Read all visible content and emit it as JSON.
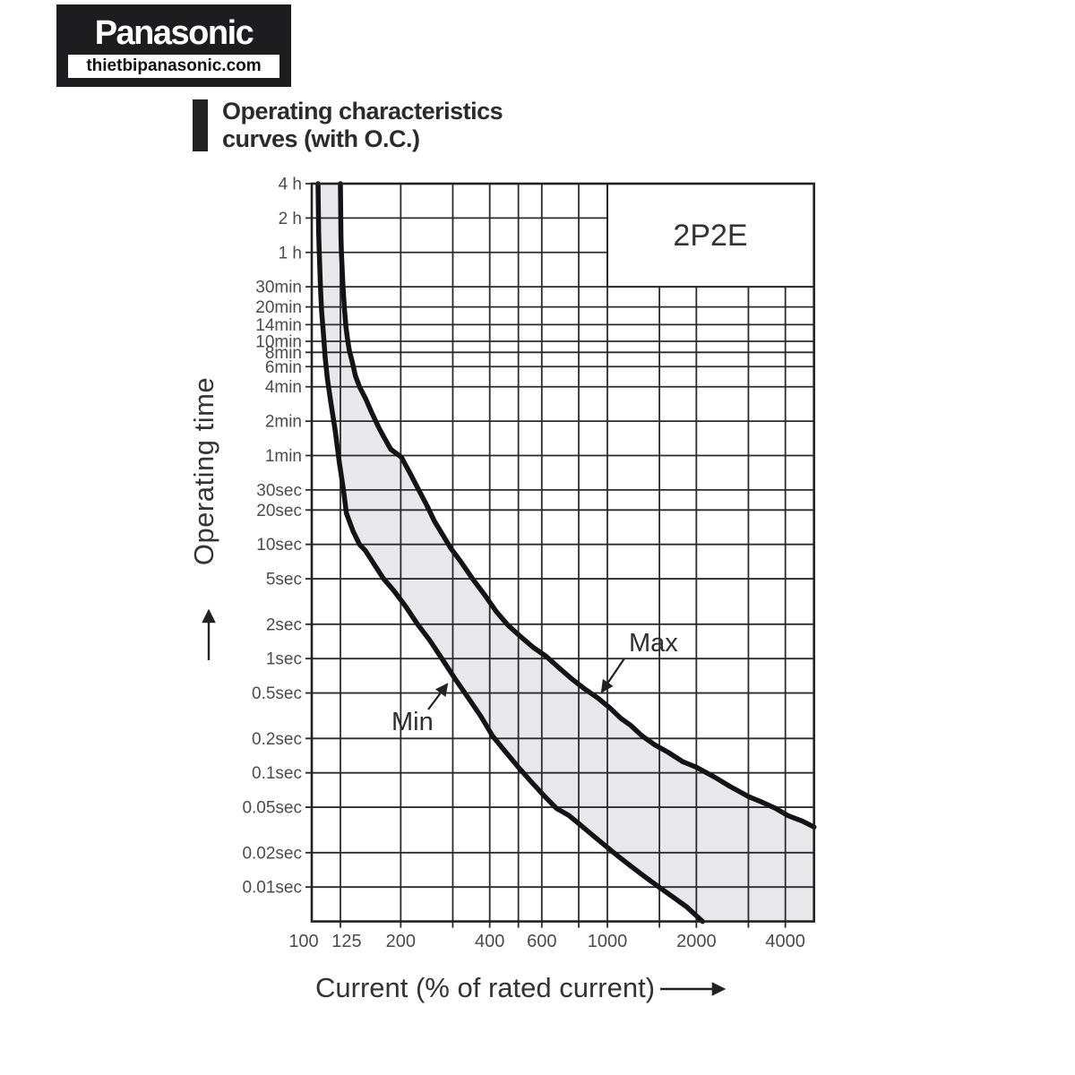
{
  "logo": {
    "brand": "Panasonic",
    "website": "thietbipanasonic.com"
  },
  "header": {
    "title_line1": "Operating characteristics",
    "title_line2": "curves (with O.C.)"
  },
  "chart_data": {
    "type": "line",
    "model_label": "2P2E",
    "x_axis": {
      "label": "Current (% of rated current)",
      "scale": "log",
      "range_pct": [
        100,
        5000
      ],
      "tick_values": [
        100,
        125,
        200,
        400,
        600,
        1000,
        2000,
        4000
      ],
      "tick_labels": [
        "100",
        "125",
        "200",
        "400",
        "600",
        "1000",
        "2000",
        "4000"
      ],
      "gridline_values": [
        125,
        200,
        300,
        400,
        500,
        600,
        800,
        1000,
        1500,
        2000,
        3000,
        4000
      ]
    },
    "y_axis": {
      "label": "Operating time",
      "scale": "log",
      "range_seconds": [
        0.005,
        14400
      ],
      "ticks": [
        {
          "label": "4 h",
          "seconds": 14400
        },
        {
          "label": "2 h",
          "seconds": 7200
        },
        {
          "label": "1 h",
          "seconds": 3600
        },
        {
          "label": "30min",
          "seconds": 1800
        },
        {
          "label": "20min",
          "seconds": 1200
        },
        {
          "label": "14min",
          "seconds": 840
        },
        {
          "label": "10min",
          "seconds": 600
        },
        {
          "label": "8min",
          "seconds": 480
        },
        {
          "label": "6min",
          "seconds": 360
        },
        {
          "label": "4min",
          "seconds": 240
        },
        {
          "label": "2min",
          "seconds": 120
        },
        {
          "label": "1min",
          "seconds": 60
        },
        {
          "label": "30sec",
          "seconds": 30
        },
        {
          "label": "20sec",
          "seconds": 20
        },
        {
          "label": "10sec",
          "seconds": 10
        },
        {
          "label": "5sec",
          "seconds": 5
        },
        {
          "label": "2sec",
          "seconds": 2
        },
        {
          "label": "1sec",
          "seconds": 1
        },
        {
          "label": "0.5sec",
          "seconds": 0.5
        },
        {
          "label": "0.2sec",
          "seconds": 0.2
        },
        {
          "label": "0.1sec",
          "seconds": 0.1
        },
        {
          "label": "0.05sec",
          "seconds": 0.05
        },
        {
          "label": "0.02sec",
          "seconds": 0.02
        },
        {
          "label": "0.01sec",
          "seconds": 0.01
        }
      ]
    },
    "series": [
      {
        "name": "Min",
        "points_pct_seconds": [
          [
            105,
            14400
          ],
          [
            105.5,
            5400
          ],
          [
            106,
            3600
          ],
          [
            107,
            1800
          ],
          [
            108,
            1100
          ],
          [
            109.5,
            700
          ],
          [
            111,
            430
          ],
          [
            113,
            280
          ],
          [
            116,
            175
          ],
          [
            120,
            100
          ],
          [
            124,
            52
          ],
          [
            128,
            30
          ],
          [
            131,
            18.7
          ],
          [
            138,
            13
          ],
          [
            145,
            10
          ],
          [
            152,
            8.8
          ],
          [
            162,
            6.8
          ],
          [
            175,
            5.0
          ],
          [
            190,
            3.9
          ],
          [
            208,
            2.85
          ],
          [
            228,
            2.0
          ],
          [
            251,
            1.44
          ],
          [
            277,
            0.98
          ],
          [
            306,
            0.66
          ],
          [
            339,
            0.45
          ],
          [
            374,
            0.31
          ],
          [
            409,
            0.21
          ],
          [
            450,
            0.155
          ],
          [
            497,
            0.114
          ],
          [
            549,
            0.085
          ],
          [
            607,
            0.064
          ],
          [
            672,
            0.049
          ],
          [
            740,
            0.0425
          ],
          [
            805,
            0.0355
          ],
          [
            890,
            0.0285
          ],
          [
            985,
            0.023
          ],
          [
            1090,
            0.0185
          ],
          [
            1210,
            0.015
          ],
          [
            1345,
            0.0122
          ],
          [
            1495,
            0.01
          ],
          [
            1665,
            0.0082
          ],
          [
            1855,
            0.0067
          ],
          [
            2100,
            0.005
          ]
        ]
      },
      {
        "name": "Max",
        "points_pct_seconds": [
          [
            125,
            14400
          ],
          [
            125.5,
            5000
          ],
          [
            126,
            3600
          ],
          [
            127.6,
            1800
          ],
          [
            129,
            1150
          ],
          [
            130.5,
            800
          ],
          [
            132,
            640
          ],
          [
            134,
            500
          ],
          [
            137,
            400
          ],
          [
            140.5,
            300
          ],
          [
            145,
            240
          ],
          [
            152,
            190
          ],
          [
            160,
            140
          ],
          [
            169,
            104
          ],
          [
            175,
            88
          ],
          [
            185,
            68
          ],
          [
            201,
            58
          ],
          [
            215,
            42
          ],
          [
            230,
            30
          ],
          [
            245,
            22
          ],
          [
            260,
            16
          ],
          [
            277,
            12.2
          ],
          [
            295,
            9.3
          ],
          [
            320,
            7.0
          ],
          [
            350,
            5.0
          ],
          [
            385,
            3.6
          ],
          [
            420,
            2.6
          ],
          [
            462,
            1.95
          ],
          [
            510,
            1.55
          ],
          [
            562,
            1.25
          ],
          [
            620,
            1.05
          ],
          [
            690,
            0.82
          ],
          [
            760,
            0.66
          ],
          [
            840,
            0.54
          ],
          [
            930,
            0.45
          ],
          [
            1020,
            0.37
          ],
          [
            1110,
            0.3
          ],
          [
            1200,
            0.26
          ],
          [
            1312,
            0.21
          ],
          [
            1450,
            0.175
          ],
          [
            1600,
            0.152
          ],
          [
            1800,
            0.125
          ],
          [
            2000,
            0.112
          ],
          [
            2300,
            0.092
          ],
          [
            2600,
            0.076
          ],
          [
            3000,
            0.062
          ],
          [
            3300,
            0.056
          ],
          [
            3700,
            0.049
          ],
          [
            4100,
            0.042
          ],
          [
            4550,
            0.038
          ],
          [
            5000,
            0.0335
          ]
        ]
      }
    ],
    "annotations": [
      {
        "text": "Max",
        "points_to_series": "Max"
      },
      {
        "text": "Min",
        "points_to_series": "Min"
      }
    ],
    "legend_position": "none",
    "grid": true,
    "band_fill": "#e8e8ea",
    "curve_color": "#141414",
    "grid_color": "#2b2b2b",
    "tick_label_color": "#4b4b4b",
    "frame_color": "#222222"
  }
}
